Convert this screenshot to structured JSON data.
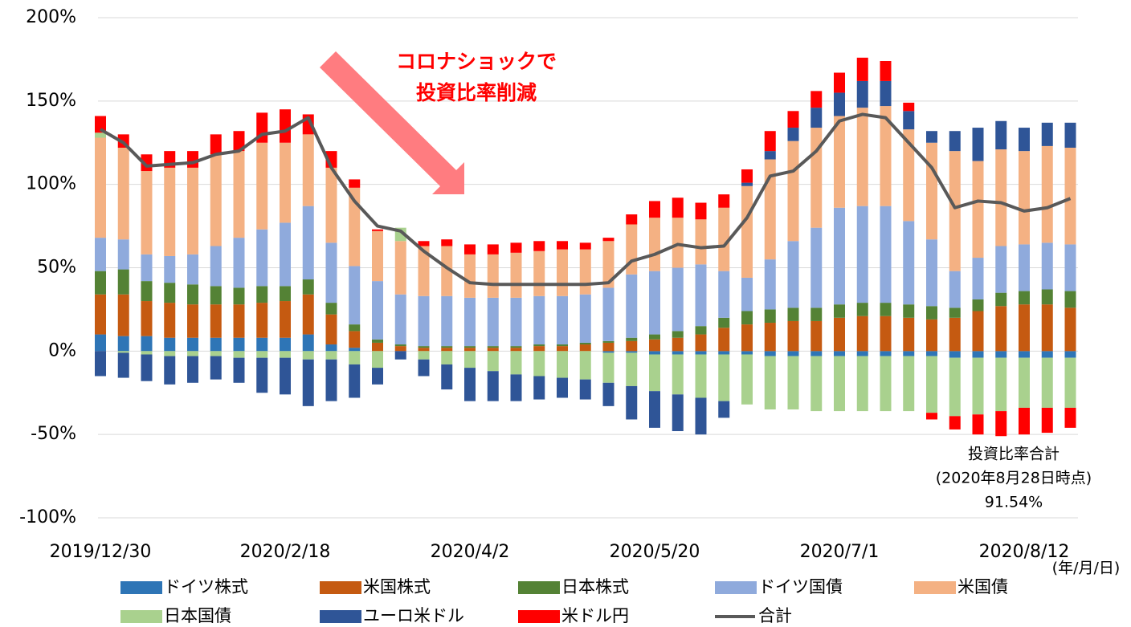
{
  "chart_data": {
    "type": "bar",
    "stacked": true,
    "categories": [
      "2019/12/30",
      null,
      null,
      null,
      null,
      null,
      null,
      null,
      "2020/2/18",
      null,
      null,
      null,
      null,
      null,
      null,
      null,
      "2020/4/2",
      null,
      null,
      null,
      null,
      null,
      null,
      null,
      "2020/5/20",
      null,
      null,
      null,
      null,
      null,
      null,
      null,
      "2020/7/1",
      null,
      null,
      null,
      null,
      null,
      null,
      null,
      "2020/8/12",
      null,
      null
    ],
    "x_unit_label": "(年/月/日)",
    "ylim": [
      -100,
      200
    ],
    "yticks": [
      {
        "value": -100,
        "label": "-100%"
      },
      {
        "value": -50,
        "label": "-50%"
      },
      {
        "value": 0,
        "label": "0%"
      },
      {
        "value": 50,
        "label": "50%"
      },
      {
        "value": 100,
        "label": "100%"
      },
      {
        "value": 150,
        "label": "150%"
      },
      {
        "value": 200,
        "label": "200%"
      }
    ],
    "grid": true,
    "legend": "bottom",
    "series": [
      {
        "name": "ドイツ株式",
        "type": "bar",
        "color": "#2e75b6",
        "values": [
          10,
          9,
          9,
          8,
          8,
          8,
          8,
          8,
          8,
          10,
          4,
          2,
          0,
          0,
          0,
          0,
          0,
          0,
          0,
          0,
          0,
          0,
          -1,
          -1,
          -2,
          -2,
          -2,
          -2,
          -2,
          -3,
          -3,
          -3,
          -3,
          -3,
          -3,
          -3,
          -3,
          -4,
          -4,
          -4,
          -4,
          -4,
          -4
        ]
      },
      {
        "name": "米国株式",
        "type": "bar",
        "color": "#c55a11",
        "values": [
          24,
          25,
          21,
          21,
          20,
          20,
          20,
          21,
          22,
          24,
          18,
          10,
          5,
          3,
          2,
          2,
          2,
          2,
          2,
          3,
          3,
          4,
          5,
          6,
          7,
          8,
          10,
          14,
          16,
          17,
          18,
          18,
          20,
          21,
          21,
          20,
          19,
          20,
          24,
          27,
          28,
          28,
          26
        ]
      },
      {
        "name": "日本株式",
        "type": "bar",
        "color": "#548235",
        "values": [
          14,
          15,
          12,
          12,
          12,
          11,
          10,
          10,
          9,
          9,
          7,
          4,
          2,
          1,
          1,
          1,
          1,
          1,
          1,
          1,
          1,
          1,
          1,
          2,
          3,
          4,
          5,
          6,
          8,
          8,
          8,
          8,
          8,
          8,
          8,
          8,
          8,
          6,
          7,
          8,
          8,
          9,
          10
        ]
      },
      {
        "name": "ドイツ国債",
        "type": "bar",
        "color": "#8faadc",
        "values": [
          20,
          18,
          16,
          16,
          18,
          24,
          30,
          34,
          38,
          44,
          36,
          35,
          35,
          30,
          30,
          30,
          29,
          29,
          29,
          29,
          29,
          29,
          32,
          38,
          38,
          38,
          37,
          28,
          20,
          30,
          40,
          48,
          58,
          58,
          58,
          50,
          40,
          22,
          25,
          28,
          28,
          28,
          28
        ]
      },
      {
        "name": "米国債",
        "type": "bar",
        "color": "#f4b183",
        "values": [
          60,
          55,
          50,
          53,
          52,
          55,
          52,
          52,
          48,
          43,
          45,
          47,
          30,
          32,
          30,
          30,
          26,
          26,
          27,
          27,
          28,
          27,
          28,
          30,
          32,
          30,
          27,
          38,
          55,
          60,
          60,
          60,
          55,
          59,
          60,
          55,
          58,
          72,
          58,
          58,
          56,
          58,
          58
        ]
      },
      {
        "name": "日本国債",
        "type": "bar",
        "color": "#a9d18e",
        "values": [
          3,
          -1,
          -2,
          -3,
          -3,
          -3,
          -4,
          -4,
          -4,
          -5,
          -5,
          -8,
          -10,
          8,
          -5,
          -8,
          -10,
          -12,
          -14,
          -15,
          -16,
          -17,
          -18,
          -20,
          -22,
          -24,
          -26,
          -28,
          -30,
          -32,
          -32,
          -33,
          -33,
          -33,
          -33,
          -33,
          -34,
          -35,
          -34,
          -32,
          -30,
          -30,
          -30
        ]
      },
      {
        "name": "ユーロ米ドル",
        "type": "bar",
        "color": "#2f5597",
        "values": [
          -15,
          -15,
          -16,
          -17,
          -16,
          -14,
          -15,
          -21,
          -22,
          -28,
          -25,
          -20,
          -10,
          -5,
          -10,
          -15,
          -20,
          -18,
          -16,
          -14,
          -12,
          -12,
          -14,
          -20,
          -22,
          -22,
          -22,
          -10,
          2,
          5,
          8,
          12,
          14,
          16,
          15,
          11,
          7,
          12,
          20,
          17,
          14,
          14,
          15
        ]
      },
      {
        "name": "米ドル円",
        "type": "bar",
        "color": "#ff0000",
        "values": [
          10,
          8,
          10,
          10,
          10,
          12,
          12,
          18,
          20,
          12,
          10,
          5,
          1,
          0,
          3,
          4,
          6,
          6,
          6,
          6,
          5,
          4,
          2,
          6,
          10,
          12,
          10,
          8,
          8,
          12,
          10,
          10,
          12,
          14,
          12,
          5,
          -4,
          -8,
          -12,
          -15,
          -16,
          -15,
          -12
        ]
      },
      {
        "name": "合計",
        "type": "line",
        "color": "#595959",
        "values": [
          133,
          125,
          111,
          112,
          113,
          118,
          120,
          130,
          132,
          140,
          110,
          90,
          75,
          72,
          60,
          50,
          41,
          40,
          40,
          40,
          40,
          40,
          41,
          54,
          58,
          64,
          62,
          63,
          80,
          105,
          108,
          120,
          138,
          142,
          140,
          125,
          110,
          86,
          90,
          89,
          84,
          86,
          91.54
        ]
      }
    ],
    "annotations": {
      "shock": [
        "コロナショックで",
        "投資比率削減"
      ],
      "total_note": [
        "投資比率合計",
        "(2020年8月28日時点)",
        "91.54%"
      ]
    }
  }
}
